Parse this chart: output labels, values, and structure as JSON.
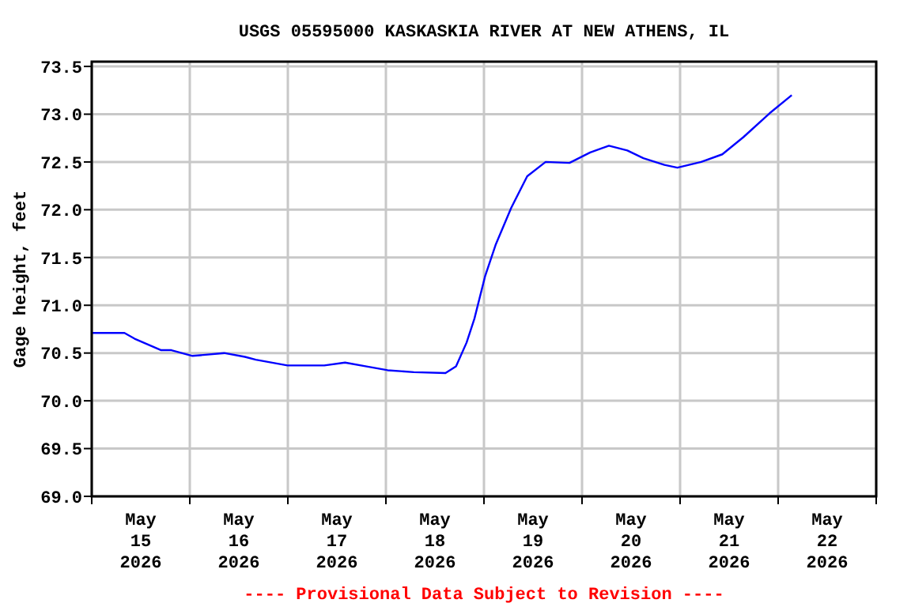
{
  "chart_data": {
    "type": "line",
    "title": "USGS 05595000 KASKASKIA RIVER AT NEW ATHENS, IL",
    "ylabel": "Gage height, feet",
    "annotations": [
      "---- Provisional Data Subject to Revision ----"
    ],
    "x": [
      "2026-05-15T00:00",
      "2026-05-15T08:00",
      "2026-05-15T10:30",
      "2026-05-15T17:00",
      "2026-05-15T19:30",
      "2026-05-16T00:40",
      "2026-05-16T08:25",
      "2026-05-16T13:30",
      "2026-05-16T16:10",
      "2026-05-16T23:55",
      "2026-05-17T08:55",
      "2026-05-17T14:00",
      "2026-05-17T19:15",
      "2026-05-18T00:25",
      "2026-05-18T06:50",
      "2026-05-18T14:35",
      "2026-05-18T17:10",
      "2026-05-18T19:45",
      "2026-05-18T21:40",
      "2026-05-19T00:15",
      "2026-05-19T02:50",
      "2026-05-19T06:40",
      "2026-05-19T10:35",
      "2026-05-19T15:05",
      "2026-05-19T20:55",
      "2026-05-20T02:00",
      "2026-05-20T06:35",
      "2026-05-20T11:05",
      "2026-05-20T15:00",
      "2026-05-20T20:10",
      "2026-05-20T23:20",
      "2026-05-21T05:10",
      "2026-05-21T10:20",
      "2026-05-21T15:30",
      "2026-05-21T21:55",
      "2026-05-22T03:20"
    ],
    "series": [
      {
        "color": "#0000ff",
        "values": [
          70.71,
          70.71,
          70.65,
          70.53,
          70.53,
          70.47,
          70.5,
          70.46,
          70.43,
          70.37,
          70.37,
          70.4,
          70.36,
          70.32,
          70.3,
          70.29,
          70.36,
          70.61,
          70.86,
          71.3,
          71.63,
          72.02,
          72.35,
          72.5,
          72.49,
          72.6,
          72.67,
          72.62,
          72.54,
          72.47,
          72.44,
          72.5,
          72.58,
          72.76,
          73.01,
          73.2
        ]
      }
    ],
    "xlim": [
      "2026-05-15T00:00",
      "2026-05-23T00:00"
    ],
    "xticks": [
      {
        "value": "2026-05-15T00:00",
        "label": null
      },
      {
        "value": "2026-05-15T12:00",
        "label": "May\n15\n2026"
      },
      {
        "value": "2026-05-16T00:00",
        "label": null
      },
      {
        "value": "2026-05-16T12:00",
        "label": "May\n16\n2026"
      },
      {
        "value": "2026-05-17T00:00",
        "label": null
      },
      {
        "value": "2026-05-17T12:00",
        "label": "May\n17\n2026"
      },
      {
        "value": "2026-05-18T00:00",
        "label": null
      },
      {
        "value": "2026-05-18T12:00",
        "label": "May\n18\n2026"
      },
      {
        "value": "2026-05-19T00:00",
        "label": null
      },
      {
        "value": "2026-05-19T12:00",
        "label": "May\n19\n2026"
      },
      {
        "value": "2026-05-20T00:00",
        "label": null
      },
      {
        "value": "2026-05-20T12:00",
        "label": "May\n20\n2026"
      },
      {
        "value": "2026-05-21T00:00",
        "label": null
      },
      {
        "value": "2026-05-21T12:00",
        "label": "May\n21\n2026"
      },
      {
        "value": "2026-05-22T00:00",
        "label": null
      },
      {
        "value": "2026-05-22T12:00",
        "label": "May\n22\n2026"
      },
      {
        "value": "2026-05-23T00:00",
        "label": null
      }
    ],
    "ylim": [
      69.0,
      73.55
    ],
    "yticks": [
      {
        "value": 69.0,
        "label": "69.0"
      },
      {
        "value": 69.5,
        "label": "69.5"
      },
      {
        "value": 70.0,
        "label": "70.0"
      },
      {
        "value": 70.5,
        "label": "70.5"
      },
      {
        "value": 71.0,
        "label": "71.0"
      },
      {
        "value": 71.5,
        "label": "71.5"
      },
      {
        "value": 72.0,
        "label": "72.0"
      },
      {
        "value": 72.5,
        "label": "72.5"
      },
      {
        "value": 73.0,
        "label": "73.0"
      },
      {
        "value": 73.5,
        "label": "73.5"
      }
    ],
    "grid": true
  }
}
